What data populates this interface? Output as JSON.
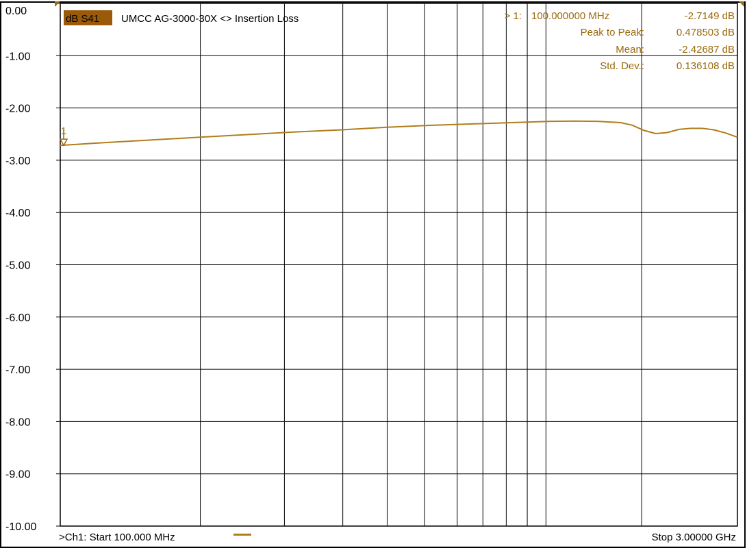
{
  "colors": {
    "trace": "#b07d1c",
    "marker_text": "#9a6a0e",
    "badge_bg": "#9a5a0a",
    "badge_text": "#000000",
    "grid": "#000000",
    "background": "#ffffff"
  },
  "header": {
    "measurement_badge": "dB S41",
    "title": "UMCC  AG-3000-30X <> Insertion Loss"
  },
  "marker_readout": {
    "marker_label": ">  1:",
    "frequency": "100.000000 MHz",
    "value": "-2.7149 dB",
    "stats": [
      {
        "label": "Peak to Peak:",
        "value": "0.478503 dB"
      },
      {
        "label": "Mean:",
        "value": "-2.42687 dB"
      },
      {
        "label": "Std. Dev.:",
        "value": "0.136108 dB"
      }
    ]
  },
  "footer": {
    "start_label": ">Ch1: Start  100.000 MHz",
    "stop_label": "Stop  3.00000 GHz"
  },
  "chart_data": {
    "type": "line",
    "title": "UMCC  AG-3000-30X <> Insertion Loss",
    "xlabel": "",
    "ylabel": "",
    "x_unit": "MHz",
    "y_unit": "dB",
    "xlim": [
      100,
      3000
    ],
    "ylim": [
      -10,
      0
    ],
    "grid": true,
    "y_ticks": [
      "0.00",
      "-1.00",
      "-2.00",
      "-3.00",
      "-4.00",
      "-5.00",
      "-6.00",
      "-7.00",
      "-8.00",
      "-9.00",
      "-10.00"
    ],
    "y_tick_values": [
      0,
      -1,
      -2,
      -3,
      -4,
      -5,
      -6,
      -7,
      -8,
      -9,
      -10
    ],
    "x_gridlines": [
      100,
      700,
      1060,
      1310,
      1500,
      1660,
      1800,
      1910,
      2010,
      2100,
      2180,
      2590,
      3000
    ],
    "series": [
      {
        "x": [
          100,
          300,
          500,
          700,
          900,
          1100,
          1300,
          1500,
          1700,
          1900,
          2100,
          2200,
          2300,
          2400,
          2500,
          2550,
          2600,
          2650,
          2700,
          2750,
          2800,
          2850,
          2900,
          2950,
          3000
        ],
        "values": [
          -2.715,
          -2.66,
          -2.61,
          -2.56,
          -2.51,
          -2.46,
          -2.42,
          -2.37,
          -2.33,
          -2.3,
          -2.27,
          -2.255,
          -2.25,
          -2.255,
          -2.28,
          -2.33,
          -2.43,
          -2.49,
          -2.47,
          -2.41,
          -2.39,
          -2.39,
          -2.42,
          -2.48,
          -2.56
        ]
      }
    ],
    "marker": {
      "label": "1",
      "x": 100,
      "y": -2.7149
    }
  }
}
